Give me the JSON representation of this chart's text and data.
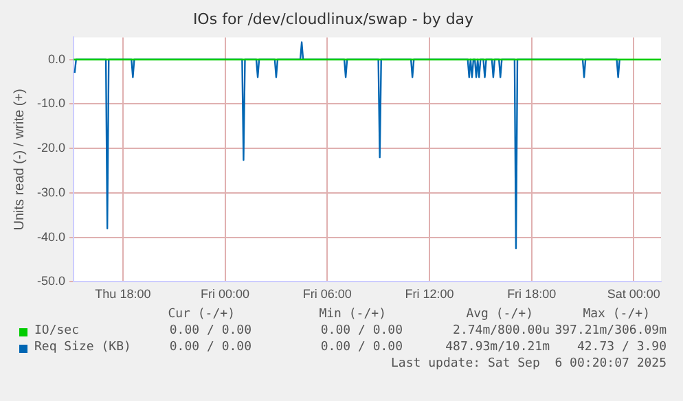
{
  "chart_data": {
    "type": "line",
    "title": "IOs for /dev/cloudlinux/swap - by day",
    "ylabel": "Units read (-) / write (+)",
    "xlim": [
      "2025-09-04T15:06",
      "2025-09-06T01:36"
    ],
    "ylim": [
      -50,
      5
    ],
    "xticks": [
      {
        "value": "2025-09-04T18:00",
        "label": "Thu 18:00"
      },
      {
        "value": "2025-09-05T00:00",
        "label": "Fri 00:00"
      },
      {
        "value": "2025-09-05T06:00",
        "label": "Fri 06:00"
      },
      {
        "value": "2025-09-05T12:00",
        "label": "Fri 12:00"
      },
      {
        "value": "2025-09-05T18:00",
        "label": "Fri 18:00"
      },
      {
        "value": "2025-09-06T00:00",
        "label": "Sat 00:00"
      }
    ],
    "yticks": [
      {
        "value": -50,
        "label": "-50.0"
      },
      {
        "value": -40,
        "label": "-40.0"
      },
      {
        "value": -30,
        "label": "-30.0"
      },
      {
        "value": -20,
        "label": "-20.0"
      },
      {
        "value": -10,
        "label": "-10.0"
      },
      {
        "value": 0,
        "label": "0.0"
      }
    ],
    "series": [
      {
        "name": "IO/sec",
        "color": "#00cc00",
        "x": [
          "2025-09-04T15:06",
          "2025-09-06T01:36"
        ],
        "values": [
          0,
          0
        ]
      },
      {
        "name": "Req Size (KB)",
        "color": "#0066b3",
        "x": [
          "2025-09-04T15:10",
          "2025-09-04T15:15",
          "2025-09-04T17:00",
          "2025-09-04T17:05",
          "2025-09-04T17:10",
          "2025-09-04T18:30",
          "2025-09-04T18:35",
          "2025-09-04T18:40",
          "2025-09-05T01:00",
          "2025-09-05T01:05",
          "2025-09-05T01:10",
          "2025-09-05T01:50",
          "2025-09-05T01:55",
          "2025-09-05T02:00",
          "2025-09-05T02:55",
          "2025-09-05T03:00",
          "2025-09-05T03:05",
          "2025-09-05T04:25",
          "2025-09-05T04:30",
          "2025-09-05T04:35",
          "2025-09-05T07:00",
          "2025-09-05T07:05",
          "2025-09-05T07:10",
          "2025-09-05T09:00",
          "2025-09-05T09:05",
          "2025-09-05T09:10",
          "2025-09-05T10:55",
          "2025-09-05T11:00",
          "2025-09-05T11:05",
          "2025-09-05T14:15",
          "2025-09-05T14:20",
          "2025-09-05T14:25",
          "2025-09-05T14:30",
          "2025-09-05T14:35",
          "2025-09-05T14:40",
          "2025-09-05T14:45",
          "2025-09-05T14:50",
          "2025-09-05T14:55",
          "2025-09-05T15:00",
          "2025-09-05T15:10",
          "2025-09-05T15:15",
          "2025-09-05T15:20",
          "2025-09-05T15:40",
          "2025-09-05T15:45",
          "2025-09-05T15:50",
          "2025-09-05T16:05",
          "2025-09-05T16:10",
          "2025-09-05T16:15",
          "2025-09-05T17:00",
          "2025-09-05T17:05",
          "2025-09-05T17:10",
          "2025-09-05T21:00",
          "2025-09-05T21:05",
          "2025-09-05T21:10",
          "2025-09-05T23:00",
          "2025-09-05T23:05",
          "2025-09-05T23:10"
        ],
        "values": [
          -3,
          0,
          0,
          -38,
          0,
          0,
          -4,
          0,
          0,
          -22.6,
          0,
          0,
          -4,
          0,
          0,
          -4,
          0,
          0,
          3.9,
          0,
          0,
          -4,
          0,
          0,
          -22,
          0,
          0,
          -4,
          0,
          0,
          -4,
          0,
          -4,
          0,
          0,
          -4,
          0,
          -4,
          0,
          0,
          -4,
          0,
          0,
          -4,
          0,
          0,
          -4,
          0,
          0,
          -42.5,
          0,
          0,
          -4,
          0,
          0,
          -4,
          0
        ]
      }
    ],
    "grid": true,
    "legend": "bottom",
    "marker": "none",
    "line_style": "solid",
    "annotations": [
      "Cur (-/+)",
      "Min (-/+)",
      "Avg (-/+)",
      "Max (-/+)",
      "0.00 / 0.00",
      "0.00 / 0.00",
      "2.74m/800.00u",
      "397.21m/306.09m",
      "0.00 / 0.00",
      "0.00 / 0.00",
      "487.93m/10.21m",
      "42.73 / 3.90",
      "Last update: Sat Sep  6 00:20:07 2025"
    ]
  }
}
